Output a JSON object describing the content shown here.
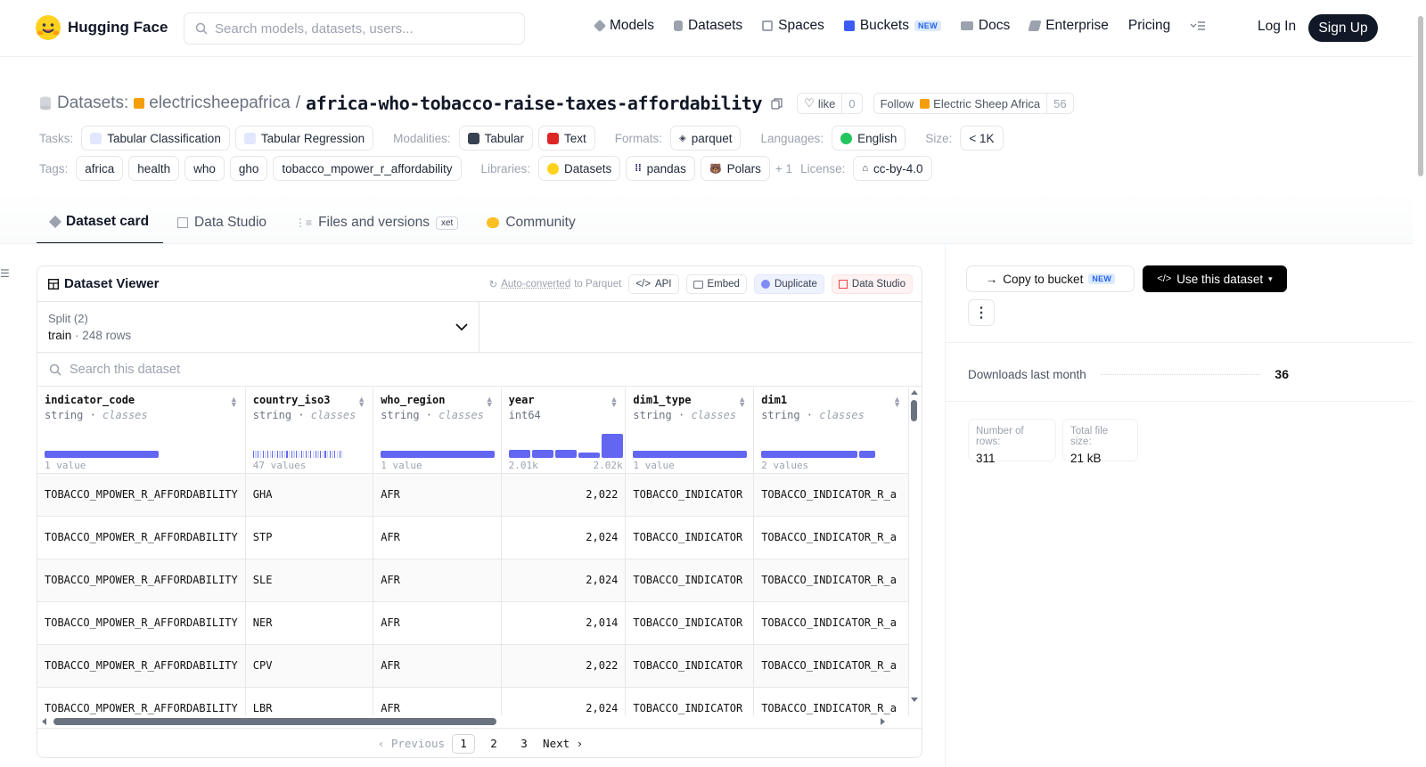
{
  "header": {
    "logo_text": "Hugging Face",
    "search_placeholder": "Search models, datasets, users...",
    "nav": [
      {
        "label": "Models",
        "icon": "cube-icon"
      },
      {
        "label": "Datasets",
        "icon": "database-icon"
      },
      {
        "label": "Spaces",
        "icon": "grid-icon"
      },
      {
        "label": "Buckets",
        "icon": "bucket-icon",
        "badge": "NEW"
      },
      {
        "label": "Docs",
        "icon": "book-icon"
      },
      {
        "label": "Enterprise",
        "icon": "enterprise-icon"
      },
      {
        "label": "Pricing"
      }
    ],
    "login": "Log In",
    "signup": "Sign Up"
  },
  "repo": {
    "section": "Datasets:",
    "owner": "electricsheepafrica",
    "slash": "/",
    "name": "africa-who-tobacco-raise-taxes-affordability",
    "like_label": "like",
    "like_count": "0",
    "follow_label": "Follow",
    "follow_org": "Electric Sheep Africa",
    "follow_count": "56"
  },
  "meta": {
    "tasks_label": "Tasks:",
    "tasks": [
      "Tabular Classification",
      "Tabular Regression"
    ],
    "modalities_label": "Modalities:",
    "modalities": [
      "Tabular",
      "Text"
    ],
    "formats_label": "Formats:",
    "formats": [
      "parquet"
    ],
    "languages_label": "Languages:",
    "languages": [
      "English"
    ],
    "size_label": "Size:",
    "size": "< 1K",
    "tags_label": "Tags:",
    "tags": [
      "africa",
      "health",
      "who",
      "gho",
      "tobacco_mpower_r_affordability"
    ],
    "libraries_label": "Libraries:",
    "libraries": [
      "Datasets",
      "pandas",
      "Polars"
    ],
    "libraries_more": "+ 1",
    "license_label": "License:",
    "license": "cc-by-4.0"
  },
  "tabs": [
    {
      "label": "Dataset card",
      "active": true
    },
    {
      "label": "Data Studio"
    },
    {
      "label": "Files and versions",
      "badge": "xet"
    },
    {
      "label": "Community"
    }
  ],
  "viewer": {
    "title": "Dataset Viewer",
    "auto_prefix": "Auto-converted",
    "auto_suffix": "to Parquet",
    "api": "API",
    "embed": "Embed",
    "duplicate": "Duplicate",
    "data_studio": "Data Studio",
    "split_label": "Split (2)",
    "split_name": "train",
    "split_rows": "248 rows",
    "search_placeholder": "Search this dataset",
    "columns": [
      {
        "name": "indicator_code",
        "type": "string",
        "kind": "classes",
        "footer": "1 value",
        "bars": [
          1.0
        ]
      },
      {
        "name": "country_iso3",
        "type": "string",
        "kind": "classes",
        "footer": "47 values"
      },
      {
        "name": "who_region",
        "type": "string",
        "kind": "classes",
        "footer": "1 value",
        "bars": [
          1.0
        ]
      },
      {
        "name": "year",
        "type": "int64",
        "kind": "",
        "footer_min": "2.01k",
        "footer_max": "2.02k",
        "bars": [
          0.32,
          0.32,
          0.32,
          0.24,
          1.0
        ]
      },
      {
        "name": "dim1_type",
        "type": "string",
        "kind": "classes",
        "footer": "1 value",
        "bars": [
          1.0
        ]
      },
      {
        "name": "dim1",
        "type": "string",
        "kind": "classes",
        "footer": "2 values",
        "bars": [
          0.85,
          0.15
        ]
      }
    ],
    "rows": [
      [
        "TOBACCO_MPOWER_R_AFFORDABILITY",
        "GHA",
        "AFR",
        "2,022",
        "TOBACCO_INDICATOR",
        "TOBACCO_INDICATOR_R_a"
      ],
      [
        "TOBACCO_MPOWER_R_AFFORDABILITY",
        "STP",
        "AFR",
        "2,024",
        "TOBACCO_INDICATOR",
        "TOBACCO_INDICATOR_R_a"
      ],
      [
        "TOBACCO_MPOWER_R_AFFORDABILITY",
        "SLE",
        "AFR",
        "2,024",
        "TOBACCO_INDICATOR",
        "TOBACCO_INDICATOR_R_a"
      ],
      [
        "TOBACCO_MPOWER_R_AFFORDABILITY",
        "NER",
        "AFR",
        "2,014",
        "TOBACCO_INDICATOR",
        "TOBACCO_INDICATOR_R_a"
      ],
      [
        "TOBACCO_MPOWER_R_AFFORDABILITY",
        "CPV",
        "AFR",
        "2,022",
        "TOBACCO_INDICATOR",
        "TOBACCO_INDICATOR_R_a"
      ],
      [
        "TOBACCO_MPOWER_R_AFFORDABILITY",
        "LBR",
        "AFR",
        "2,024",
        "TOBACCO_INDICATOR",
        "TOBACCO_INDICATOR_R_a"
      ]
    ],
    "pager": {
      "prev": "Previous",
      "pages": [
        "1",
        "2",
        "3"
      ],
      "current": "1",
      "next": "Next"
    }
  },
  "sidebar": {
    "copy_to_bucket": "Copy to bucket",
    "copy_badge": "NEW",
    "use_dataset": "Use this dataset",
    "downloads_label": "Downloads last month",
    "downloads_value": "36",
    "rows_label": "Number of rows:",
    "rows_value": "311",
    "size_label": "Total file size:",
    "size_value": "21 kB"
  },
  "colors": {
    "accent": "#6366f1",
    "dark": "#111827",
    "brand": "#ffd21e"
  }
}
